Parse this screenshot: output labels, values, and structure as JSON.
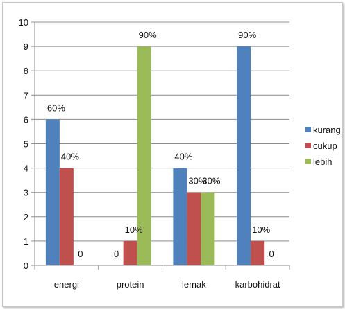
{
  "chart_data": {
    "type": "bar",
    "title": "",
    "xlabel": "",
    "ylabel": "",
    "ylim": [
      0,
      10
    ],
    "yticks": [
      0,
      1,
      2,
      3,
      4,
      5,
      6,
      7,
      8,
      9,
      10
    ],
    "grid": true,
    "legend_position": "right",
    "categories": [
      "energi",
      "protein",
      "lemak",
      "karbohidrat"
    ],
    "series": [
      {
        "name": "kurang",
        "color": "#4f81bd",
        "values": [
          6,
          0,
          4,
          9
        ],
        "labels": [
          "60%",
          "0",
          "40%",
          "90%"
        ]
      },
      {
        "name": "cukup",
        "color": "#c0504d",
        "values": [
          4,
          1,
          3,
          1
        ],
        "labels": [
          "40%",
          "10%",
          "30%",
          "10%"
        ]
      },
      {
        "name": "lebih",
        "color": "#9bbb59",
        "values": [
          0,
          9,
          3,
          0
        ],
        "labels": [
          "0",
          "90%",
          "30%",
          "0"
        ]
      }
    ]
  }
}
